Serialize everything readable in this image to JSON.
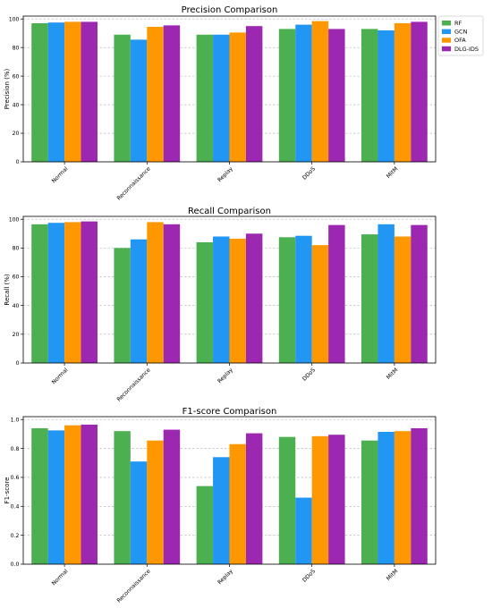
{
  "colors": {
    "RF": "#4caf50",
    "GCN": "#2196f3",
    "OFA": "#ff9800",
    "DLG-IDS": "#9c27b0",
    "grid": "#b0b0b0",
    "axis": "#000000"
  },
  "legend": {
    "entries": [
      "RF",
      "GCN",
      "OFA",
      "DLG-IDS"
    ],
    "placement": "outside-right of top chart"
  },
  "chart_data": [
    {
      "type": "bar",
      "title": "Precision Comparison",
      "xlabel": "",
      "ylabel": "Precision (%)",
      "categories": [
        "Normal",
        "Reconnaissance",
        "Replay",
        "DDoS",
        "MitM"
      ],
      "ylim": [
        0,
        102
      ],
      "yticks": [
        0,
        20,
        40,
        60,
        80,
        100
      ],
      "yticklabels": [
        "0",
        "20",
        "40",
        "60",
        "80",
        "100"
      ],
      "grid": "y-dashed",
      "series": [
        {
          "name": "RF",
          "values": [
            97.0,
            89.0,
            89.0,
            93.0,
            93.0
          ]
        },
        {
          "name": "GCN",
          "values": [
            97.5,
            85.5,
            89.0,
            96.0,
            92.0
          ]
        },
        {
          "name": "OFA",
          "values": [
            98.0,
            94.5,
            90.5,
            98.5,
            97.0
          ]
        },
        {
          "name": "DLG-IDS",
          "values": [
            98.0,
            95.5,
            95.0,
            93.0,
            98.0
          ]
        }
      ]
    },
    {
      "type": "bar",
      "title": "Recall Comparison",
      "xlabel": "",
      "ylabel": "Recall (%)",
      "categories": [
        "Normal",
        "Reconnaissance",
        "Replay",
        "DDoS",
        "MitM"
      ],
      "ylim": [
        0,
        102
      ],
      "yticks": [
        0,
        20,
        40,
        60,
        80,
        100
      ],
      "yticklabels": [
        "0",
        "20",
        "40",
        "60",
        "80",
        "100"
      ],
      "grid": "y-dashed",
      "series": [
        {
          "name": "RF",
          "values": [
            96.5,
            80.0,
            84.0,
            87.5,
            89.5
          ]
        },
        {
          "name": "GCN",
          "values": [
            97.5,
            86.0,
            88.0,
            88.5,
            96.5
          ]
        },
        {
          "name": "OFA",
          "values": [
            98.0,
            98.0,
            86.5,
            82.0,
            88.0
          ]
        },
        {
          "name": "DLG-IDS",
          "values": [
            98.5,
            96.5,
            90.0,
            96.0,
            96.0
          ]
        }
      ]
    },
    {
      "type": "bar",
      "title": "F1-score Comparison",
      "xlabel": "",
      "ylabel": "F1-score",
      "categories": [
        "Normal",
        "Reconnaissance",
        "Replay",
        "DDoS",
        "MitM"
      ],
      "ylim": [
        0,
        1.02
      ],
      "yticks": [
        0,
        0.2,
        0.4,
        0.6,
        0.8,
        1.0
      ],
      "yticklabels": [
        "0.0",
        "0.2",
        "0.4",
        "0.6",
        "0.8",
        "1.0"
      ],
      "grid": "y-dashed",
      "series": [
        {
          "name": "RF",
          "values": [
            0.94,
            0.92,
            0.54,
            0.88,
            0.855
          ]
        },
        {
          "name": "GCN",
          "values": [
            0.925,
            0.71,
            0.74,
            0.46,
            0.915
          ]
        },
        {
          "name": "OFA",
          "values": [
            0.96,
            0.855,
            0.83,
            0.885,
            0.92
          ]
        },
        {
          "name": "DLG-IDS",
          "values": [
            0.965,
            0.93,
            0.905,
            0.895,
            0.94
          ]
        }
      ]
    }
  ]
}
